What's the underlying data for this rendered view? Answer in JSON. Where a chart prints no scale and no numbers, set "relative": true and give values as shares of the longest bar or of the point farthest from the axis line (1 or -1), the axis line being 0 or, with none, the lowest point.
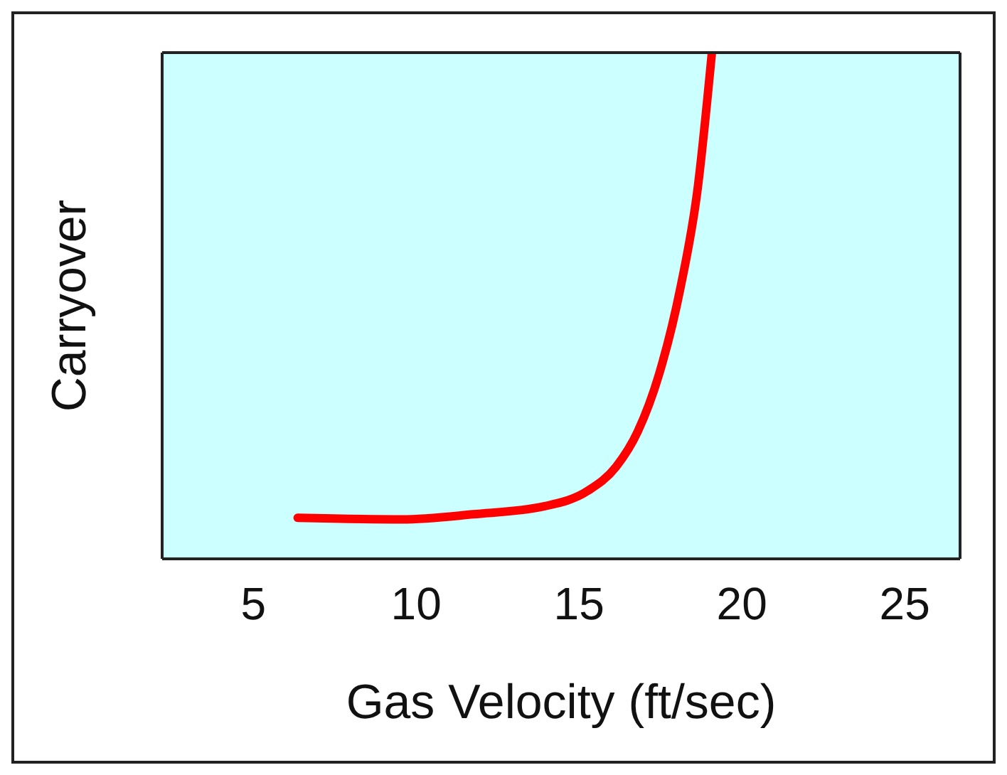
{
  "chart_data": {
    "type": "line",
    "xlabel": "Gas Velocity (ft/sec)",
    "ylabel": "Carryover",
    "relative": true,
    "xlim": [
      2.2,
      26.7
    ],
    "xticks": [
      5,
      10,
      15,
      20,
      25
    ],
    "marker": "none",
    "line_style": "solid",
    "series": [
      {
        "color": "#ff0000",
        "x": [
          6.36,
          9.56,
          11.75,
          13.95,
          15.26,
          16.14,
          16.8,
          17.46,
          18.11,
          18.64,
          19.08
        ],
        "values": [
          0.081,
          0.078,
          0.088,
          0.104,
          0.134,
          0.182,
          0.251,
          0.365,
          0.534,
          0.73,
          1
        ]
      }
    ]
  }
}
